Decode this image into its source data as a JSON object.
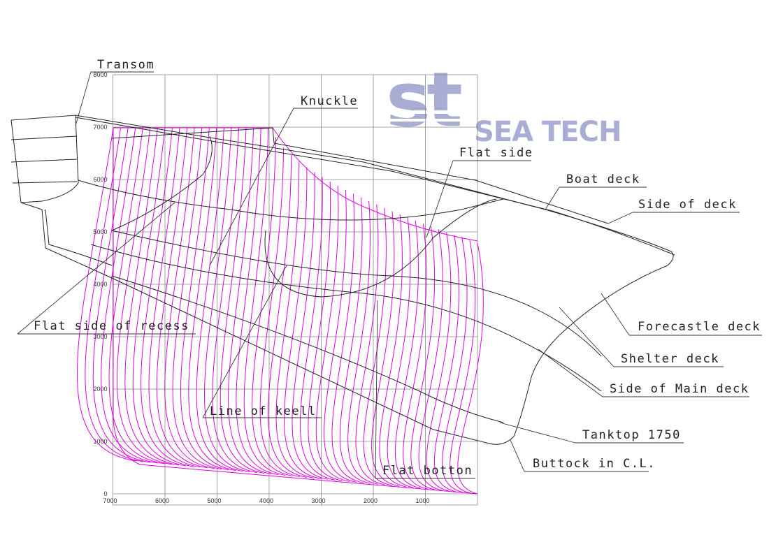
{
  "logo": {
    "mark": "st",
    "name": "SEA TECH"
  },
  "axes": {
    "x_ticks": [
      7000,
      6000,
      5000,
      4000,
      3000,
      2000,
      1000
    ],
    "y_ticks": [
      0,
      1000,
      2000,
      3000,
      4000,
      5000,
      6000,
      7000,
      8000
    ]
  },
  "labels": [
    "Transom",
    "Knuckle",
    "Flat side",
    "Boat deck",
    "Side of deck",
    "Forecastle deck",
    "Shelter deck",
    "Side of Main deck",
    "Tanktop 1750",
    "Buttock in C.L.",
    "Flat side of recess",
    "Line of keell",
    "Flat botton"
  ]
}
